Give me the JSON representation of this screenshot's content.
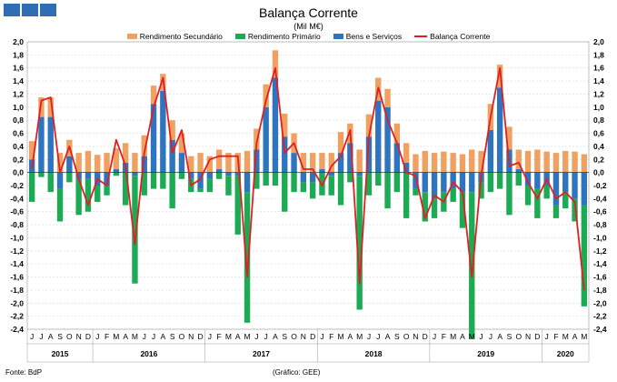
{
  "header": {
    "title": "Balança Corrente",
    "subtitle": "(Mil M€)"
  },
  "legend": [
    {
      "label": "Rendimento Secundário",
      "color": "#f0a060",
      "kind": "bar"
    },
    {
      "label": "Rendimento Primário",
      "color": "#1daa54",
      "kind": "bar"
    },
    {
      "label": "Bens e Serviços",
      "color": "#2e74c0",
      "kind": "bar"
    },
    {
      "label": "Balança Corrente",
      "color": "#e02020",
      "kind": "line"
    }
  ],
  "footer": {
    "source": "Fonte: BdP",
    "credit": "(Gráfico: GEE)"
  },
  "chart_data": {
    "type": "bar",
    "stacked": true,
    "title": "Balança Corrente",
    "subtitle": "(Mil M€)",
    "ylim": [
      -2.4,
      2.0
    ],
    "yticks": [
      "2,0",
      "1,8",
      "1,6",
      "1,4",
      "1,2",
      "1,0",
      "0,8",
      "0,6",
      "0,4",
      "0,2",
      "0,0",
      "-0,2",
      "-0,4",
      "-0,6",
      "-0,8",
      "-1,0",
      "-1,2",
      "-1,4",
      "-1,6",
      "-1,8",
      "-2,0",
      "-2,2",
      "-2,4"
    ],
    "month_labels": [
      "J",
      "J",
      "A",
      "S",
      "O",
      "N",
      "D",
      "J",
      "F",
      "M",
      "A",
      "M",
      "J",
      "J",
      "A",
      "S",
      "O",
      "N",
      "D",
      "J",
      "F",
      "M",
      "A",
      "M",
      "J",
      "J",
      "A",
      "S",
      "O",
      "N",
      "D",
      "J",
      "F",
      "M",
      "A",
      "M",
      "J",
      "J",
      "A",
      "S",
      "O",
      "N",
      "D",
      "J",
      "F",
      "M",
      "A",
      "M",
      "J",
      "J",
      "A",
      "S",
      "O",
      "N",
      "D",
      "J",
      "F",
      "M",
      "A",
      "M"
    ],
    "year_labels": [
      {
        "year": "2015",
        "start": 0,
        "count": 7
      },
      {
        "year": "2016",
        "start": 7,
        "count": 12
      },
      {
        "year": "2017",
        "start": 19,
        "count": 12
      },
      {
        "year": "2018",
        "start": 31,
        "count": 12
      },
      {
        "year": "2019",
        "start": 43,
        "count": 12
      },
      {
        "year": "2020",
        "start": 55,
        "count": 5
      }
    ],
    "series": [
      {
        "name": "Rendimento Secundário",
        "color": "#f0a060",
        "values": [
          0.28,
          0.3,
          0.3,
          0.3,
          0.25,
          0.3,
          0.33,
          0.27,
          0.3,
          0.32,
          0.3,
          0.3,
          0.32,
          0.28,
          0.26,
          0.3,
          0.3,
          0.25,
          0.3,
          0.25,
          0.3,
          0.3,
          0.3,
          0.33,
          0.32,
          0.35,
          0.42,
          0.35,
          0.3,
          0.3,
          0.3,
          0.25,
          0.3,
          0.32,
          0.3,
          0.35,
          0.34,
          0.35,
          0.28,
          0.3,
          0.3,
          0.28,
          0.33,
          0.3,
          0.32,
          0.3,
          0.28,
          0.35,
          0.33,
          0.4,
          0.35,
          0.35,
          0.3,
          0.33,
          0.35,
          0.32,
          0.3,
          0.33,
          0.32,
          0.28
        ]
      },
      {
        "name": "Rendimento Primário",
        "color": "#1daa54",
        "values": [
          -0.45,
          -0.07,
          -0.3,
          -0.5,
          -0.15,
          -0.55,
          -0.5,
          -0.25,
          -0.15,
          -0.05,
          -0.5,
          -1.65,
          -0.35,
          -0.25,
          -0.25,
          -0.55,
          -0.1,
          -0.2,
          -0.05,
          -0.2,
          -0.1,
          -0.3,
          -0.9,
          -2.0,
          -0.25,
          -0.2,
          -0.2,
          -0.6,
          -0.3,
          -0.15,
          -0.25,
          -0.35,
          -0.3,
          -0.5,
          -0.15,
          -2.05,
          -0.35,
          -0.2,
          -0.55,
          -0.3,
          -0.7,
          -0.1,
          -0.45,
          -0.3,
          -0.3,
          -0.2,
          -0.55,
          -2.25,
          -0.25,
          -0.3,
          -0.25,
          -0.65,
          -0.2,
          -0.3,
          -0.45,
          -0.2,
          -0.2,
          -0.25,
          -0.35,
          -1.55
        ]
      },
      {
        "name": "Bens e Serviços",
        "color": "#2e74c0",
        "values": [
          0.2,
          0.85,
          0.85,
          -0.25,
          0.25,
          -0.1,
          -0.1,
          -0.2,
          -0.2,
          0.05,
          0.15,
          -0.05,
          0.25,
          1.05,
          1.25,
          0.5,
          0.3,
          -0.1,
          -0.25,
          -0.1,
          0.05,
          -0.05,
          -0.05,
          -0.3,
          0.35,
          1.0,
          1.45,
          0.55,
          0.3,
          -0.15,
          -0.15,
          0.05,
          -0.05,
          0.3,
          0.45,
          -0.05,
          0.55,
          1.1,
          1.0,
          0.45,
          0.15,
          -0.25,
          -0.3,
          -0.4,
          -0.3,
          -0.25,
          -0.3,
          -0.3,
          -0.15,
          0.65,
          1.3,
          0.35,
          0.05,
          -0.2,
          -0.25,
          -0.2,
          -0.5,
          -0.3,
          -0.4,
          -0.5
        ]
      },
      {
        "name": "Balança Corrente",
        "color": "#e02020",
        "kind": "line",
        "values": [
          0.05,
          1.1,
          1.15,
          0.0,
          0.4,
          -0.1,
          -0.5,
          -0.1,
          -0.2,
          0.5,
          0.1,
          -1.1,
          0.3,
          1.0,
          1.45,
          0.3,
          0.65,
          -0.2,
          -0.1,
          0.2,
          0.25,
          0.25,
          0.25,
          -1.6,
          0.45,
          1.1,
          1.6,
          0.3,
          0.45,
          0.05,
          0.05,
          -0.2,
          0.1,
          0.25,
          0.65,
          -1.7,
          0.55,
          1.3,
          0.8,
          0.45,
          0.0,
          -0.05,
          -0.7,
          -0.35,
          -0.45,
          -0.15,
          -0.3,
          -1.6,
          -0.05,
          0.85,
          1.6,
          0.1,
          0.15,
          -0.15,
          -0.4,
          -0.1,
          -0.4,
          -0.3,
          -0.45,
          -1.8
        ]
      }
    ]
  }
}
